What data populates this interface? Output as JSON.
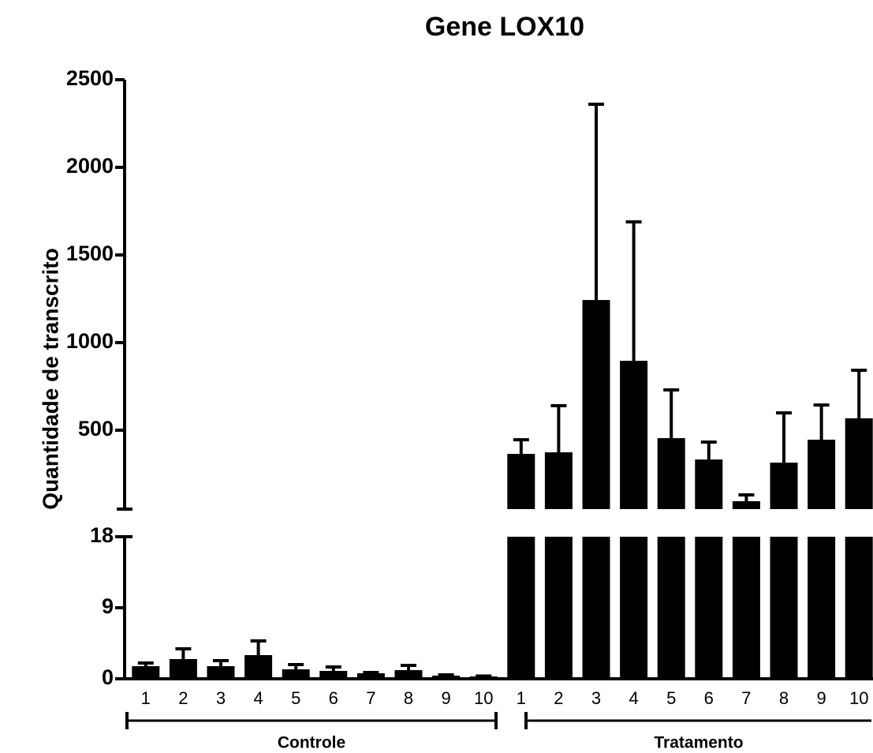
{
  "chart_data": {
    "type": "bar",
    "title": "Gene LOX10",
    "y_label": "Quantidade de transcrito",
    "color": "#000000",
    "ylim": [
      0,
      18
    ],
    "yticks": [
      0,
      9,
      18
    ],
    "ylim_upper": [
      50,
      2500
    ],
    "yticks_upper": [
      500,
      1000,
      1500,
      2000,
      2500
    ],
    "groups": [
      {
        "name": "Controle",
        "categories": [
          "1",
          "2",
          "3",
          "4",
          "5",
          "6",
          "7",
          "8",
          "9",
          "10"
        ],
        "values": [
          1.6,
          2.5,
          1.6,
          3.0,
          1.2,
          1.0,
          0.7,
          1.1,
          0.4,
          0.3
        ],
        "errors": [
          0.4,
          1.3,
          0.7,
          1.8,
          0.6,
          0.5,
          0.1,
          0.6,
          0.1,
          0.05
        ]
      },
      {
        "name": "Tratamento",
        "categories": [
          "1",
          "2",
          "3",
          "4",
          "5",
          "6",
          "7",
          "8",
          "9",
          "10"
        ],
        "values": [
          365,
          374,
          1243,
          896,
          455,
          333,
          95,
          315,
          446,
          568
        ],
        "errors": [
          81,
          266,
          1117,
          793,
          275,
          99,
          36,
          284,
          198,
          274
        ]
      }
    ]
  }
}
